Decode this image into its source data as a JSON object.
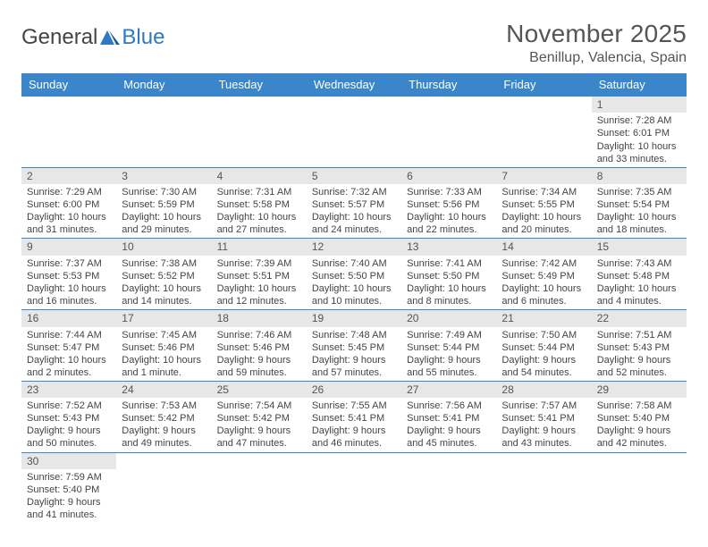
{
  "logo": {
    "text_general": "General",
    "text_blue": "Blue"
  },
  "header": {
    "title": "November 2025",
    "location": "Benillup, Valencia, Spain"
  },
  "columns": [
    "Sunday",
    "Monday",
    "Tuesday",
    "Wednesday",
    "Thursday",
    "Friday",
    "Saturday"
  ],
  "colors": {
    "header_bg": "#3b86ca",
    "header_text": "#ffffff",
    "daynum_bg": "#e7e7e7",
    "grid_line": "#3b86ca",
    "text": "#444444",
    "title_text": "#555555",
    "logo_blue": "#2f78c4"
  },
  "weeks": [
    [
      null,
      null,
      null,
      null,
      null,
      null,
      {
        "n": "1",
        "sr": "Sunrise: 7:28 AM",
        "ss": "Sunset: 6:01 PM",
        "dl": "Daylight: 10 hours and 33 minutes."
      }
    ],
    [
      {
        "n": "2",
        "sr": "Sunrise: 7:29 AM",
        "ss": "Sunset: 6:00 PM",
        "dl": "Daylight: 10 hours and 31 minutes."
      },
      {
        "n": "3",
        "sr": "Sunrise: 7:30 AM",
        "ss": "Sunset: 5:59 PM",
        "dl": "Daylight: 10 hours and 29 minutes."
      },
      {
        "n": "4",
        "sr": "Sunrise: 7:31 AM",
        "ss": "Sunset: 5:58 PM",
        "dl": "Daylight: 10 hours and 27 minutes."
      },
      {
        "n": "5",
        "sr": "Sunrise: 7:32 AM",
        "ss": "Sunset: 5:57 PM",
        "dl": "Daylight: 10 hours and 24 minutes."
      },
      {
        "n": "6",
        "sr": "Sunrise: 7:33 AM",
        "ss": "Sunset: 5:56 PM",
        "dl": "Daylight: 10 hours and 22 minutes."
      },
      {
        "n": "7",
        "sr": "Sunrise: 7:34 AM",
        "ss": "Sunset: 5:55 PM",
        "dl": "Daylight: 10 hours and 20 minutes."
      },
      {
        "n": "8",
        "sr": "Sunrise: 7:35 AM",
        "ss": "Sunset: 5:54 PM",
        "dl": "Daylight: 10 hours and 18 minutes."
      }
    ],
    [
      {
        "n": "9",
        "sr": "Sunrise: 7:37 AM",
        "ss": "Sunset: 5:53 PM",
        "dl": "Daylight: 10 hours and 16 minutes."
      },
      {
        "n": "10",
        "sr": "Sunrise: 7:38 AM",
        "ss": "Sunset: 5:52 PM",
        "dl": "Daylight: 10 hours and 14 minutes."
      },
      {
        "n": "11",
        "sr": "Sunrise: 7:39 AM",
        "ss": "Sunset: 5:51 PM",
        "dl": "Daylight: 10 hours and 12 minutes."
      },
      {
        "n": "12",
        "sr": "Sunrise: 7:40 AM",
        "ss": "Sunset: 5:50 PM",
        "dl": "Daylight: 10 hours and 10 minutes."
      },
      {
        "n": "13",
        "sr": "Sunrise: 7:41 AM",
        "ss": "Sunset: 5:50 PM",
        "dl": "Daylight: 10 hours and 8 minutes."
      },
      {
        "n": "14",
        "sr": "Sunrise: 7:42 AM",
        "ss": "Sunset: 5:49 PM",
        "dl": "Daylight: 10 hours and 6 minutes."
      },
      {
        "n": "15",
        "sr": "Sunrise: 7:43 AM",
        "ss": "Sunset: 5:48 PM",
        "dl": "Daylight: 10 hours and 4 minutes."
      }
    ],
    [
      {
        "n": "16",
        "sr": "Sunrise: 7:44 AM",
        "ss": "Sunset: 5:47 PM",
        "dl": "Daylight: 10 hours and 2 minutes."
      },
      {
        "n": "17",
        "sr": "Sunrise: 7:45 AM",
        "ss": "Sunset: 5:46 PM",
        "dl": "Daylight: 10 hours and 1 minute."
      },
      {
        "n": "18",
        "sr": "Sunrise: 7:46 AM",
        "ss": "Sunset: 5:46 PM",
        "dl": "Daylight: 9 hours and 59 minutes."
      },
      {
        "n": "19",
        "sr": "Sunrise: 7:48 AM",
        "ss": "Sunset: 5:45 PM",
        "dl": "Daylight: 9 hours and 57 minutes."
      },
      {
        "n": "20",
        "sr": "Sunrise: 7:49 AM",
        "ss": "Sunset: 5:44 PM",
        "dl": "Daylight: 9 hours and 55 minutes."
      },
      {
        "n": "21",
        "sr": "Sunrise: 7:50 AM",
        "ss": "Sunset: 5:44 PM",
        "dl": "Daylight: 9 hours and 54 minutes."
      },
      {
        "n": "22",
        "sr": "Sunrise: 7:51 AM",
        "ss": "Sunset: 5:43 PM",
        "dl": "Daylight: 9 hours and 52 minutes."
      }
    ],
    [
      {
        "n": "23",
        "sr": "Sunrise: 7:52 AM",
        "ss": "Sunset: 5:43 PM",
        "dl": "Daylight: 9 hours and 50 minutes."
      },
      {
        "n": "24",
        "sr": "Sunrise: 7:53 AM",
        "ss": "Sunset: 5:42 PM",
        "dl": "Daylight: 9 hours and 49 minutes."
      },
      {
        "n": "25",
        "sr": "Sunrise: 7:54 AM",
        "ss": "Sunset: 5:42 PM",
        "dl": "Daylight: 9 hours and 47 minutes."
      },
      {
        "n": "26",
        "sr": "Sunrise: 7:55 AM",
        "ss": "Sunset: 5:41 PM",
        "dl": "Daylight: 9 hours and 46 minutes."
      },
      {
        "n": "27",
        "sr": "Sunrise: 7:56 AM",
        "ss": "Sunset: 5:41 PM",
        "dl": "Daylight: 9 hours and 45 minutes."
      },
      {
        "n": "28",
        "sr": "Sunrise: 7:57 AM",
        "ss": "Sunset: 5:41 PM",
        "dl": "Daylight: 9 hours and 43 minutes."
      },
      {
        "n": "29",
        "sr": "Sunrise: 7:58 AM",
        "ss": "Sunset: 5:40 PM",
        "dl": "Daylight: 9 hours and 42 minutes."
      }
    ],
    [
      {
        "n": "30",
        "sr": "Sunrise: 7:59 AM",
        "ss": "Sunset: 5:40 PM",
        "dl": "Daylight: 9 hours and 41 minutes."
      },
      null,
      null,
      null,
      null,
      null,
      null
    ]
  ]
}
